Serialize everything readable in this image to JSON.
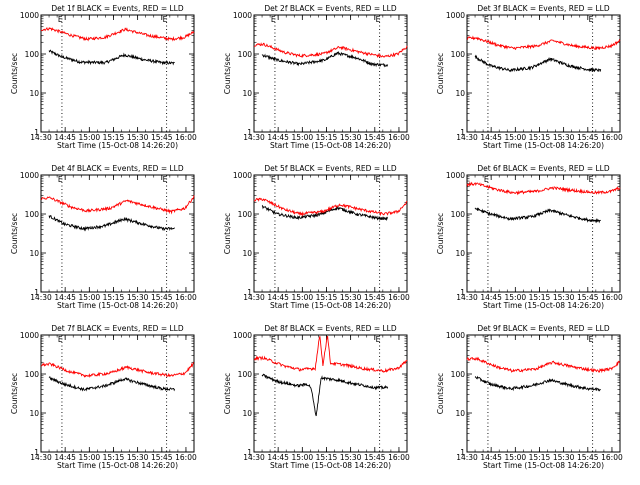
{
  "chart_data": [
    {
      "type": "line",
      "title": "Det 1f BLACK = Events, RED = LLD",
      "marker": "E",
      "xlabel": "Start Time (15-Oct-08 14:26:20)",
      "ylabel": "Counts/sec",
      "yscale": "log",
      "ylim": [
        1,
        1000
      ],
      "xlim": [
        "14:30",
        "16:05"
      ],
      "x_ticks": [
        "14:30",
        "14:45",
        "15:00",
        "15:15",
        "15:30",
        "15:45",
        "16:00"
      ],
      "y_ticks": [
        "1",
        "10",
        "100",
        "1000"
      ],
      "dotted_lines_x": [
        "14:43",
        "15:48"
      ],
      "series": [
        {
          "name": "Events",
          "color": "#000000",
          "x_start": "14:35",
          "x_end": "15:53",
          "points": [
            [
              0,
              120
            ],
            [
              0.1,
              85
            ],
            [
              0.25,
              62
            ],
            [
              0.45,
              60
            ],
            [
              0.6,
              95
            ],
            [
              0.75,
              72
            ],
            [
              0.9,
              60
            ],
            [
              1.0,
              58
            ]
          ]
        },
        {
          "name": "LLD",
          "color": "#ff0000",
          "x_start": "14:30",
          "x_end": "16:05",
          "points": [
            [
              0,
              420
            ],
            [
              0.06,
              450
            ],
            [
              0.2,
              300
            ],
            [
              0.3,
              240
            ],
            [
              0.42,
              270
            ],
            [
              0.55,
              430
            ],
            [
              0.7,
              300
            ],
            [
              0.85,
              240
            ],
            [
              0.94,
              270
            ],
            [
              1.0,
              370
            ]
          ]
        }
      ]
    },
    {
      "type": "line",
      "title": "Det 2f BLACK = Events, RED = LLD",
      "marker": "E",
      "xlabel": "Start Time (15-Oct-08 14:26:20)",
      "ylabel": "Counts/sec",
      "yscale": "log",
      "ylim": [
        1,
        1000
      ],
      "xlim": [
        "14:30",
        "16:05"
      ],
      "x_ticks": [
        "14:30",
        "14:45",
        "15:00",
        "15:15",
        "15:30",
        "15:45",
        "16:00"
      ],
      "y_ticks": [
        "1",
        "10",
        "100",
        "1000"
      ],
      "dotted_lines_x": [
        "14:43",
        "15:48"
      ],
      "series": [
        {
          "name": "Events",
          "color": "#000000",
          "x_start": "14:35",
          "x_end": "15:53",
          "points": [
            [
              0,
              95
            ],
            [
              0.12,
              70
            ],
            [
              0.3,
              55
            ],
            [
              0.5,
              70
            ],
            [
              0.6,
              105
            ],
            [
              0.75,
              80
            ],
            [
              0.88,
              55
            ],
            [
              1.0,
              52
            ]
          ]
        },
        {
          "name": "LLD",
          "color": "#ff0000",
          "x_start": "14:30",
          "x_end": "16:05",
          "points": [
            [
              0,
              170
            ],
            [
              0.06,
              180
            ],
            [
              0.2,
              110
            ],
            [
              0.3,
              90
            ],
            [
              0.45,
              100
            ],
            [
              0.56,
              150
            ],
            [
              0.7,
              110
            ],
            [
              0.85,
              85
            ],
            [
              0.94,
              100
            ],
            [
              1.0,
              155
            ]
          ]
        }
      ]
    },
    {
      "type": "line",
      "title": "Det 3f BLACK = Events, RED = LLD",
      "marker": "E",
      "xlabel": "Start Time (15-Oct-08 14:26:20)",
      "ylabel": "Counts/sec",
      "yscale": "log",
      "ylim": [
        1,
        1000
      ],
      "xlim": [
        "14:30",
        "16:05"
      ],
      "x_ticks": [
        "14:30",
        "14:45",
        "15:00",
        "15:15",
        "15:30",
        "15:45",
        "16:00"
      ],
      "y_ticks": [
        "1",
        "10",
        "100",
        "1000"
      ],
      "dotted_lines_x": [
        "14:43",
        "15:48"
      ],
      "series": [
        {
          "name": "Events",
          "color": "#000000",
          "x_start": "14:35",
          "x_end": "15:53",
          "points": [
            [
              0,
              85
            ],
            [
              0.12,
              50
            ],
            [
              0.28,
              38
            ],
            [
              0.45,
              45
            ],
            [
              0.6,
              75
            ],
            [
              0.75,
              50
            ],
            [
              0.9,
              40
            ],
            [
              1.0,
              38
            ]
          ]
        },
        {
          "name": "LLD",
          "color": "#ff0000",
          "x_start": "14:30",
          "x_end": "16:05",
          "points": [
            [
              0,
              250
            ],
            [
              0.06,
              260
            ],
            [
              0.2,
              170
            ],
            [
              0.3,
              140
            ],
            [
              0.45,
              160
            ],
            [
              0.56,
              220
            ],
            [
              0.7,
              160
            ],
            [
              0.85,
              140
            ],
            [
              0.94,
              160
            ],
            [
              1.0,
              220
            ]
          ]
        }
      ]
    },
    {
      "type": "line",
      "title": "Det 4f BLACK = Events, RED = LLD",
      "marker": "E",
      "xlabel": "Start Time (15-Oct-08 14:26:20)",
      "ylabel": "Counts/sec",
      "yscale": "log",
      "ylim": [
        1,
        1000
      ],
      "xlim": [
        "14:30",
        "16:05"
      ],
      "x_ticks": [
        "14:30",
        "14:45",
        "15:00",
        "15:15",
        "15:30",
        "15:45",
        "16:00"
      ],
      "y_ticks": [
        "1",
        "10",
        "100",
        "1000"
      ],
      "dotted_lines_x": [
        "14:43",
        "15:48"
      ],
      "series": [
        {
          "name": "Events",
          "color": "#000000",
          "x_start": "14:35",
          "x_end": "15:53",
          "points": [
            [
              0,
              90
            ],
            [
              0.12,
              55
            ],
            [
              0.28,
              42
            ],
            [
              0.45,
              50
            ],
            [
              0.6,
              75
            ],
            [
              0.75,
              55
            ],
            [
              0.9,
              42
            ],
            [
              1.0,
              42
            ]
          ]
        },
        {
          "name": "LLD",
          "color": "#ff0000",
          "x_start": "14:30",
          "x_end": "16:05",
          "points": [
            [
              0,
              250
            ],
            [
              0.06,
              260
            ],
            [
              0.2,
              150
            ],
            [
              0.3,
              120
            ],
            [
              0.45,
              140
            ],
            [
              0.56,
              220
            ],
            [
              0.7,
              160
            ],
            [
              0.85,
              115
            ],
            [
              0.94,
              140
            ],
            [
              1.0,
              280
            ]
          ]
        }
      ]
    },
    {
      "type": "line",
      "title": "Det 5f BLACK = Events, RED = LLD",
      "marker": "E",
      "xlabel": "Start Time (15-Oct-08 14:26:20)",
      "ylabel": "Counts/sec",
      "yscale": "log",
      "ylim": [
        1,
        1000
      ],
      "xlim": [
        "14:30",
        "16:05"
      ],
      "x_ticks": [
        "14:30",
        "14:45",
        "15:00",
        "15:15",
        "15:30",
        "15:45",
        "16:00"
      ],
      "y_ticks": [
        "1",
        "10",
        "100",
        "1000"
      ],
      "dotted_lines_x": [
        "14:43",
        "15:48"
      ],
      "series": [
        {
          "name": "Events",
          "color": "#000000",
          "x_start": "14:35",
          "x_end": "15:53",
          "points": [
            [
              0,
              160
            ],
            [
              0.12,
              100
            ],
            [
              0.28,
              80
            ],
            [
              0.45,
              95
            ],
            [
              0.6,
              145
            ],
            [
              0.75,
              100
            ],
            [
              0.9,
              80
            ],
            [
              1.0,
              75
            ]
          ]
        },
        {
          "name": "LLD",
          "color": "#ff0000",
          "x_start": "14:30",
          "x_end": "16:05",
          "points": [
            [
              0,
              230
            ],
            [
              0.06,
              240
            ],
            [
              0.2,
              130
            ],
            [
              0.3,
              100
            ],
            [
              0.45,
              115
            ],
            [
              0.56,
              175
            ],
            [
              0.7,
              130
            ],
            [
              0.85,
              100
            ],
            [
              0.94,
              115
            ],
            [
              1.0,
              200
            ]
          ]
        }
      ]
    },
    {
      "type": "line",
      "title": "Det 6f BLACK = Events, RED = LLD",
      "marker": "E",
      "xlabel": "Start Time (15-Oct-08 14:26:20)",
      "ylabel": "Counts/sec",
      "yscale": "log",
      "ylim": [
        1,
        1000
      ],
      "xlim": [
        "14:30",
        "16:05"
      ],
      "x_ticks": [
        "14:30",
        "14:45",
        "15:00",
        "15:15",
        "15:30",
        "15:45",
        "16:00"
      ],
      "y_ticks": [
        "1",
        "10",
        "100",
        "1000"
      ],
      "dotted_lines_x": [
        "14:43",
        "15:48"
      ],
      "series": [
        {
          "name": "Events",
          "color": "#000000",
          "x_start": "14:35",
          "x_end": "15:53",
          "points": [
            [
              0,
              140
            ],
            [
              0.12,
              100
            ],
            [
              0.28,
              75
            ],
            [
              0.45,
              85
            ],
            [
              0.6,
              125
            ],
            [
              0.75,
              90
            ],
            [
              0.9,
              70
            ],
            [
              1.0,
              68
            ]
          ]
        },
        {
          "name": "LLD",
          "color": "#ff0000",
          "x_start": "14:30",
          "x_end": "16:05",
          "points": [
            [
              0,
              570
            ],
            [
              0.06,
              600
            ],
            [
              0.2,
              420
            ],
            [
              0.3,
              350
            ],
            [
              0.45,
              380
            ],
            [
              0.56,
              470
            ],
            [
              0.7,
              400
            ],
            [
              0.85,
              350
            ],
            [
              0.94,
              380
            ],
            [
              1.0,
              470
            ]
          ]
        }
      ]
    },
    {
      "type": "line",
      "title": "Det 7f BLACK = Events, RED = LLD",
      "marker": "E",
      "xlabel": "Start Time (15-Oct-08 14:26:20)",
      "ylabel": "Counts/sec",
      "yscale": "log",
      "ylim": [
        1,
        1000
      ],
      "xlim": [
        "14:30",
        "16:05"
      ],
      "x_ticks": [
        "14:30",
        "14:45",
        "15:00",
        "15:15",
        "15:30",
        "15:45",
        "16:00"
      ],
      "y_ticks": [
        "1",
        "10",
        "100",
        "1000"
      ],
      "dotted_lines_x": [
        "14:43",
        "15:48"
      ],
      "series": [
        {
          "name": "Events",
          "color": "#000000",
          "x_start": "14:35",
          "x_end": "15:53",
          "points": [
            [
              0,
              80
            ],
            [
              0.12,
              55
            ],
            [
              0.28,
              40
            ],
            [
              0.45,
              50
            ],
            [
              0.6,
              75
            ],
            [
              0.75,
              55
            ],
            [
              0.9,
              42
            ],
            [
              1.0,
              40
            ]
          ]
        },
        {
          "name": "LLD",
          "color": "#ff0000",
          "x_start": "14:30",
          "x_end": "16:05",
          "points": [
            [
              0,
              170
            ],
            [
              0.06,
              180
            ],
            [
              0.2,
              110
            ],
            [
              0.3,
              90
            ],
            [
              0.45,
              105
            ],
            [
              0.56,
              150
            ],
            [
              0.7,
              110
            ],
            [
              0.85,
              90
            ],
            [
              0.94,
              105
            ],
            [
              1.0,
              190
            ]
          ]
        }
      ]
    },
    {
      "type": "line",
      "title": "Det 8f BLACK = Events, RED = LLD",
      "marker": "E",
      "xlabel": "Start Time (15-Oct-08 14:26:20)",
      "ylabel": "Counts/sec",
      "yscale": "log",
      "ylim": [
        1,
        1000
      ],
      "xlim": [
        "14:30",
        "16:05"
      ],
      "x_ticks": [
        "14:30",
        "14:45",
        "15:00",
        "15:15",
        "15:30",
        "15:45",
        "16:00"
      ],
      "y_ticks": [
        "1",
        "10",
        "100",
        "1000"
      ],
      "dotted_lines_x": [
        "14:43",
        "15:48"
      ],
      "series": [
        {
          "name": "Events",
          "color": "#000000",
          "x_start": "14:35",
          "x_end": "15:53",
          "points": [
            [
              0,
              95
            ],
            [
              0.12,
              65
            ],
            [
              0.28,
              50
            ],
            [
              0.36,
              55
            ],
            [
              0.39,
              45
            ],
            [
              0.43,
              8
            ],
            [
              0.47,
              80
            ],
            [
              0.6,
              70
            ],
            [
              0.75,
              55
            ],
            [
              0.9,
              45
            ],
            [
              1.0,
              45
            ]
          ]
        },
        {
          "name": "LLD",
          "color": "#ff0000",
          "x_start": "14:30",
          "x_end": "16:05",
          "points": [
            [
              0,
              250
            ],
            [
              0.06,
              260
            ],
            [
              0.2,
              160
            ],
            [
              0.3,
              130
            ],
            [
              0.4,
              140
            ],
            [
              0.43,
              1000
            ],
            [
              0.45,
              170
            ],
            [
              0.48,
              1000
            ],
            [
              0.5,
              190
            ],
            [
              0.6,
              170
            ],
            [
              0.7,
              140
            ],
            [
              0.85,
              120
            ],
            [
              0.94,
              140
            ],
            [
              1.0,
              220
            ]
          ]
        }
      ]
    },
    {
      "type": "line",
      "title": "Det 9f BLACK = Events, RED = LLD",
      "marker": "E",
      "xlabel": "Start Time (15-Oct-08 14:26:20)",
      "ylabel": "Counts/sec",
      "yscale": "log",
      "ylim": [
        1,
        1000
      ],
      "xlim": [
        "14:30",
        "16:05"
      ],
      "x_ticks": [
        "14:30",
        "14:45",
        "15:00",
        "15:15",
        "15:30",
        "15:45",
        "16:00"
      ],
      "y_ticks": [
        "1",
        "10",
        "100",
        "1000"
      ],
      "dotted_lines_x": [
        "14:43",
        "15:48"
      ],
      "series": [
        {
          "name": "Events",
          "color": "#000000",
          "x_start": "14:35",
          "x_end": "15:53",
          "points": [
            [
              0,
              85
            ],
            [
              0.12,
              55
            ],
            [
              0.28,
              42
            ],
            [
              0.45,
              50
            ],
            [
              0.6,
              70
            ],
            [
              0.75,
              52
            ],
            [
              0.9,
              42
            ],
            [
              1.0,
              40
            ]
          ]
        },
        {
          "name": "LLD",
          "color": "#ff0000",
          "x_start": "14:30",
          "x_end": "16:05",
          "points": [
            [
              0,
              240
            ],
            [
              0.06,
              250
            ],
            [
              0.2,
              150
            ],
            [
              0.3,
              120
            ],
            [
              0.45,
              135
            ],
            [
              0.56,
              200
            ],
            [
              0.7,
              150
            ],
            [
              0.85,
              120
            ],
            [
              0.94,
              135
            ],
            [
              1.0,
              210
            ]
          ]
        }
      ]
    }
  ]
}
